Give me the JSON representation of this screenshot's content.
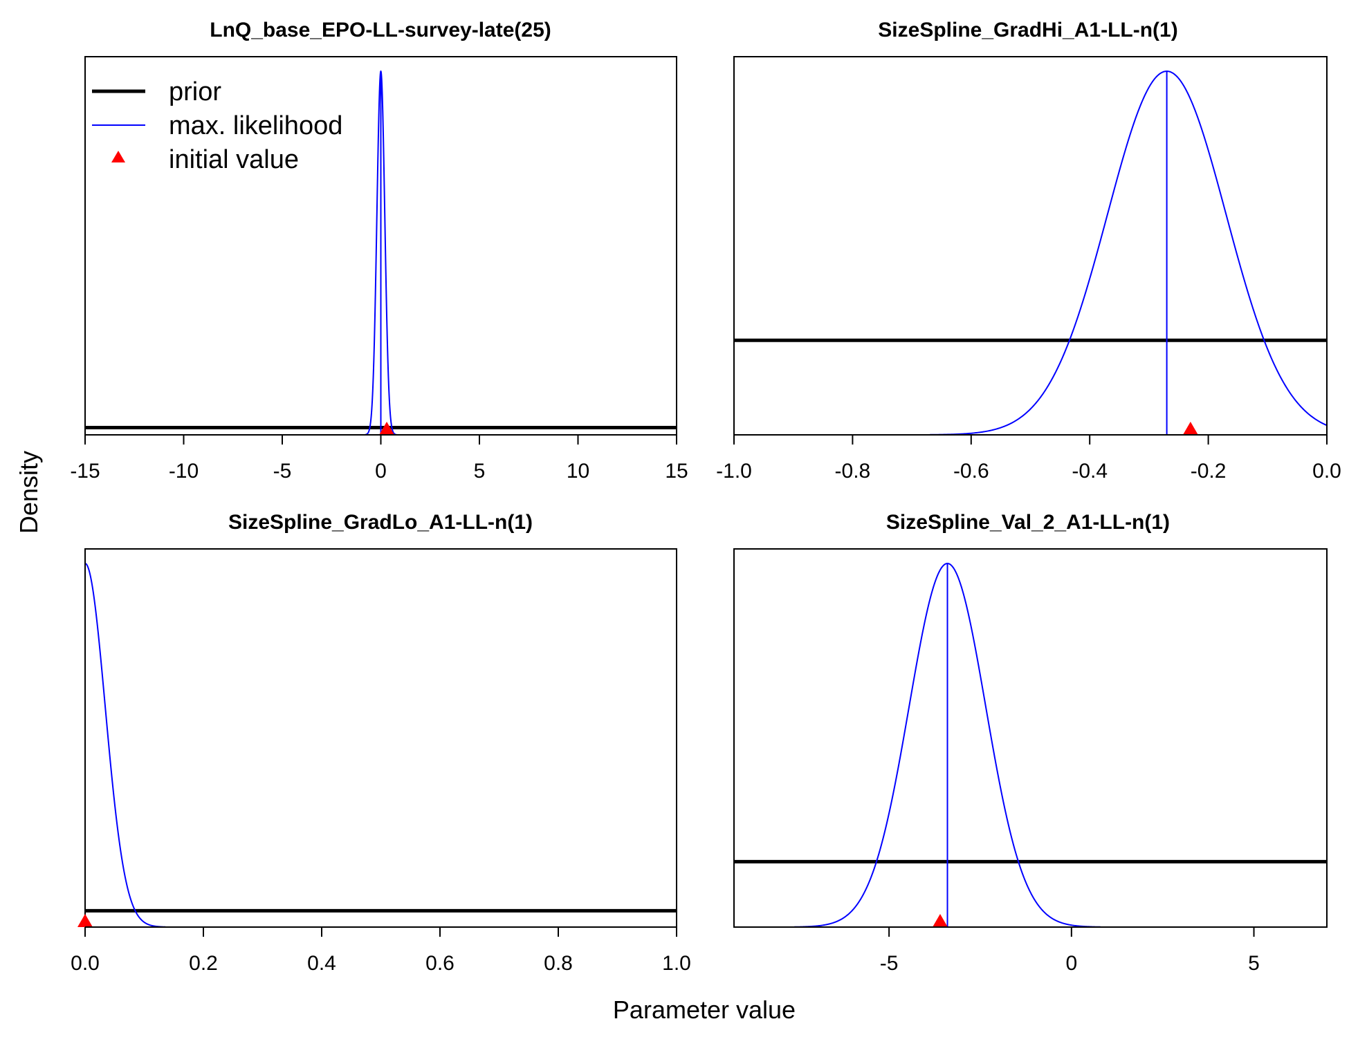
{
  "figure": {
    "xlabel": "Parameter value",
    "ylabel": "Density"
  },
  "legend": {
    "placement": "top-left of first panel",
    "items": [
      {
        "label": "prior",
        "color": "#000000",
        "style": "thick-line"
      },
      {
        "label": "max. likelihood",
        "color": "#0000ff",
        "style": "thin-line"
      },
      {
        "label": "initial value",
        "color": "#ff0000",
        "style": "triangle"
      }
    ]
  },
  "colors": {
    "prior": "#000000",
    "mle": "#0000ff",
    "initial": "#ff0000",
    "frame": "#000000"
  },
  "chart_data": [
    {
      "type": "line",
      "title": "LnQ_base_EPO-LL-survey-late(25)",
      "xlim": [
        -15,
        15
      ],
      "xticks": [
        -15,
        -10,
        -5,
        0,
        5,
        10,
        15
      ],
      "tick_labels": [
        "-15",
        "-10",
        "-5",
        "0",
        "5",
        "10",
        "15"
      ],
      "prior_level": 0.02,
      "mle": {
        "mean": 0.0,
        "sd": 0.2
      },
      "initial_value": 0.3,
      "grid": false
    },
    {
      "type": "line",
      "title": "SizeSpline_GradHi_A1-LL-n(1)",
      "xlim": [
        -1.0,
        0.0
      ],
      "xticks": [
        -1.0,
        -0.8,
        -0.6,
        -0.4,
        -0.2,
        0.0
      ],
      "tick_labels": [
        "-1.0",
        "-0.8",
        "-0.6",
        "-0.4",
        "-0.2",
        "0.0"
      ],
      "prior_level": 0.26,
      "mle": {
        "mean": -0.27,
        "sd": 0.1
      },
      "initial_value": -0.23,
      "grid": false
    },
    {
      "type": "line",
      "title": "SizeSpline_GradLo_A1-LL-n(1)",
      "xlim": [
        0.0,
        1.0
      ],
      "xticks": [
        0.0,
        0.2,
        0.4,
        0.6,
        0.8,
        1.0
      ],
      "tick_labels": [
        "0.0",
        "0.2",
        "0.4",
        "0.6",
        "0.8",
        "1.0"
      ],
      "prior_level": 0.045,
      "mle": {
        "mean": 0.0,
        "sd": 0.034,
        "lower_bound": 0.0
      },
      "initial_value": 0.0,
      "grid": false
    },
    {
      "type": "line",
      "title": "SizeSpline_Val_2_A1-LL-n(1)",
      "xlim": [
        -9.25,
        7.0
      ],
      "xticks": [
        -5,
        0,
        5
      ],
      "tick_labels": [
        "-5",
        "0",
        "5"
      ],
      "prior_level": 0.18,
      "mle": {
        "mean": -3.4,
        "sd": 1.05
      },
      "initial_value": -3.6,
      "grid": false
    }
  ]
}
